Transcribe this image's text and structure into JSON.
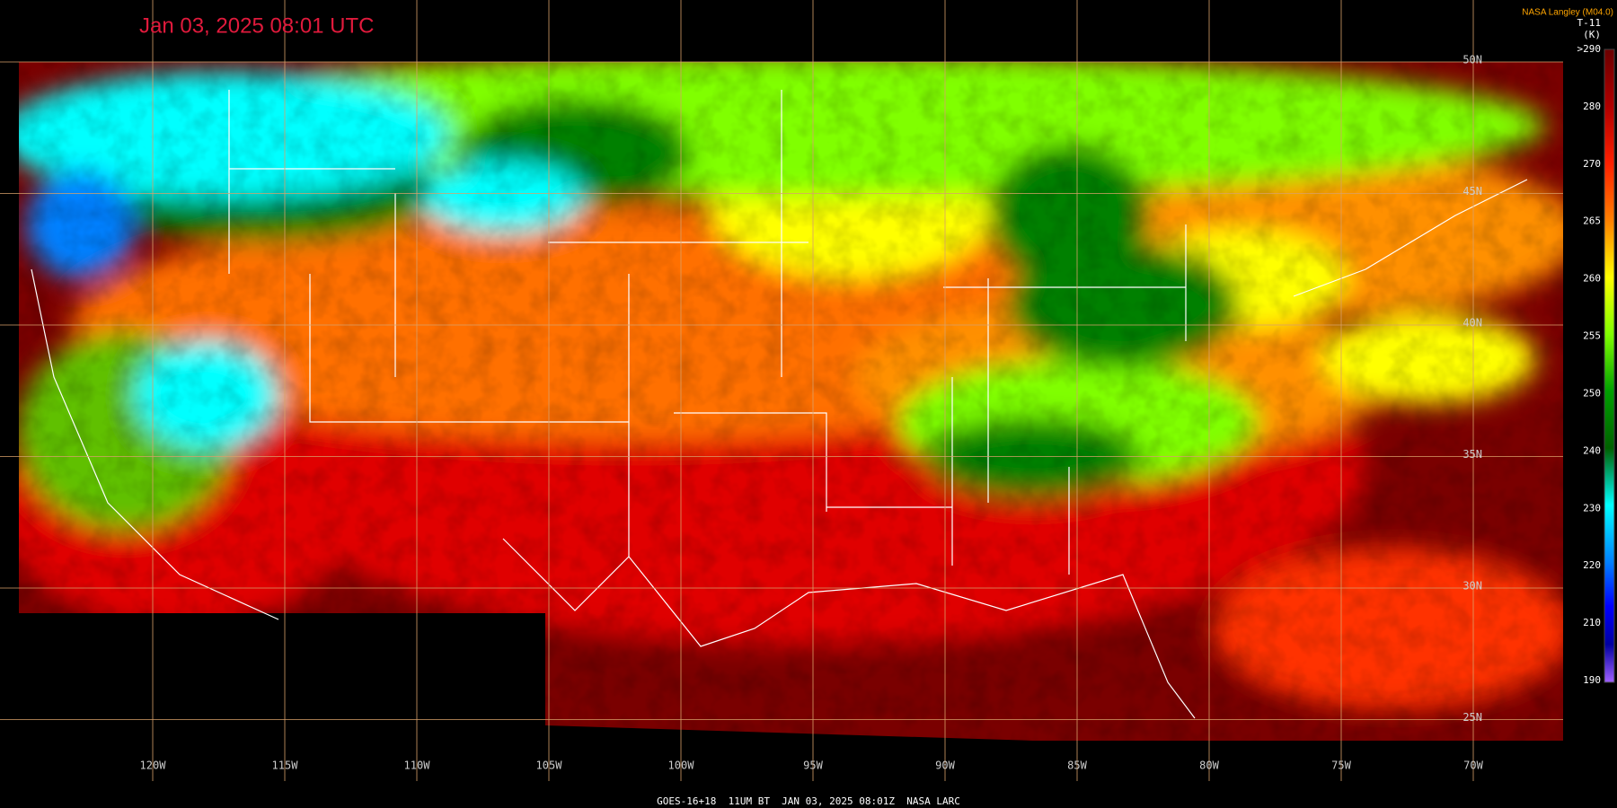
{
  "header": {
    "title": "Jan 03, 2025 08:01 UTC",
    "provider": "NASA Langley (M04.0)"
  },
  "colorbar": {
    "title": "T-11",
    "unit": "(K)",
    "labels": [
      ">290",
      "280",
      "270",
      "265",
      "260",
      "255",
      "250",
      "240",
      "230",
      "220",
      "210",
      "190"
    ]
  },
  "grid": {
    "longitude_labels": [
      "120W",
      "115W",
      "110W",
      "105W",
      "100W",
      "95W",
      "90W",
      "85W",
      "80W",
      "75W",
      "70W"
    ],
    "latitude_labels": [
      "50N",
      "45N",
      "40N",
      "35N",
      "30N",
      "25N"
    ]
  },
  "footer": "GOES-16+18  11UM BT  JAN 03, 2025 08:01Z  NASA LARC"
}
